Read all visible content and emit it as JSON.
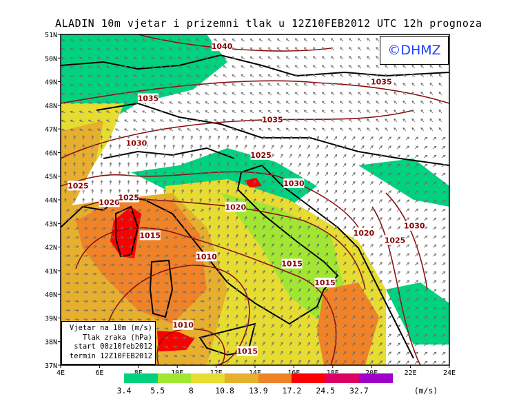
{
  "title": "ALADIN 10m vjetar i prizemni tlak u 12Z10FEB2012 UTC 12h prognoza",
  "logo": "©DHMZ",
  "map": {
    "lon_range": [
      4,
      24
    ],
    "lat_range": [
      37,
      51
    ],
    "lon_ticks": [
      "4E",
      "6E",
      "8E",
      "10E",
      "12E",
      "14E",
      "16E",
      "18E",
      "20E",
      "22E",
      "24E"
    ],
    "lat_ticks": [
      "37N",
      "38N",
      "39N",
      "40N",
      "41N",
      "42N",
      "43N",
      "44N",
      "45N",
      "46N",
      "47N",
      "48N",
      "49N",
      "50N",
      "51N"
    ],
    "isobar_labels": [
      {
        "value": "1040",
        "lon": 12.3,
        "lat": 50.5
      },
      {
        "value": "1035",
        "lon": 8.5,
        "lat": 48.3
      },
      {
        "value": "1035",
        "lon": 20.5,
        "lat": 49.0
      },
      {
        "value": "1035",
        "lon": 14.9,
        "lat": 47.4
      },
      {
        "value": "1030",
        "lon": 7.9,
        "lat": 46.4
      },
      {
        "value": "1025",
        "lon": 4.9,
        "lat": 44.6
      },
      {
        "value": "1020",
        "lon": 6.5,
        "lat": 43.9
      },
      {
        "value": "1025",
        "lon": 7.5,
        "lat": 44.1
      },
      {
        "value": "1025",
        "lon": 14.3,
        "lat": 45.9
      },
      {
        "value": "1030",
        "lon": 16.0,
        "lat": 44.7
      },
      {
        "value": "1020",
        "lon": 13.0,
        "lat": 43.7
      },
      {
        "value": "1015",
        "lon": 8.6,
        "lat": 42.5
      },
      {
        "value": "1010",
        "lon": 11.5,
        "lat": 41.6
      },
      {
        "value": "1015",
        "lon": 15.9,
        "lat": 41.3
      },
      {
        "value": "1015",
        "lon": 17.6,
        "lat": 40.5
      },
      {
        "value": "1020",
        "lon": 19.6,
        "lat": 42.6
      },
      {
        "value": "1025",
        "lon": 21.2,
        "lat": 42.3
      },
      {
        "value": "1030",
        "lon": 22.2,
        "lat": 42.9
      },
      {
        "value": "1010",
        "lon": 10.3,
        "lat": 38.7
      },
      {
        "value": "1015",
        "lon": 13.6,
        "lat": 37.6
      }
    ]
  },
  "info_box": {
    "line1": "Vjetar na 10m (m/s)",
    "line2": "Tlak zraka (hPa)",
    "line3": "start 00z10feb2012",
    "line4": "termin 12Z10FEB2012"
  },
  "legend": {
    "unit": "(m/s)",
    "labels": [
      "3.4",
      "5.5",
      "8",
      "10.8",
      "13.9",
      "17.2",
      "24.5",
      "32.7"
    ],
    "colors": [
      "#00d27f",
      "#a0e632",
      "#e6dc32",
      "#e6af2d",
      "#f08228",
      "#fa0000",
      "#dc0064",
      "#a000c8"
    ]
  }
}
